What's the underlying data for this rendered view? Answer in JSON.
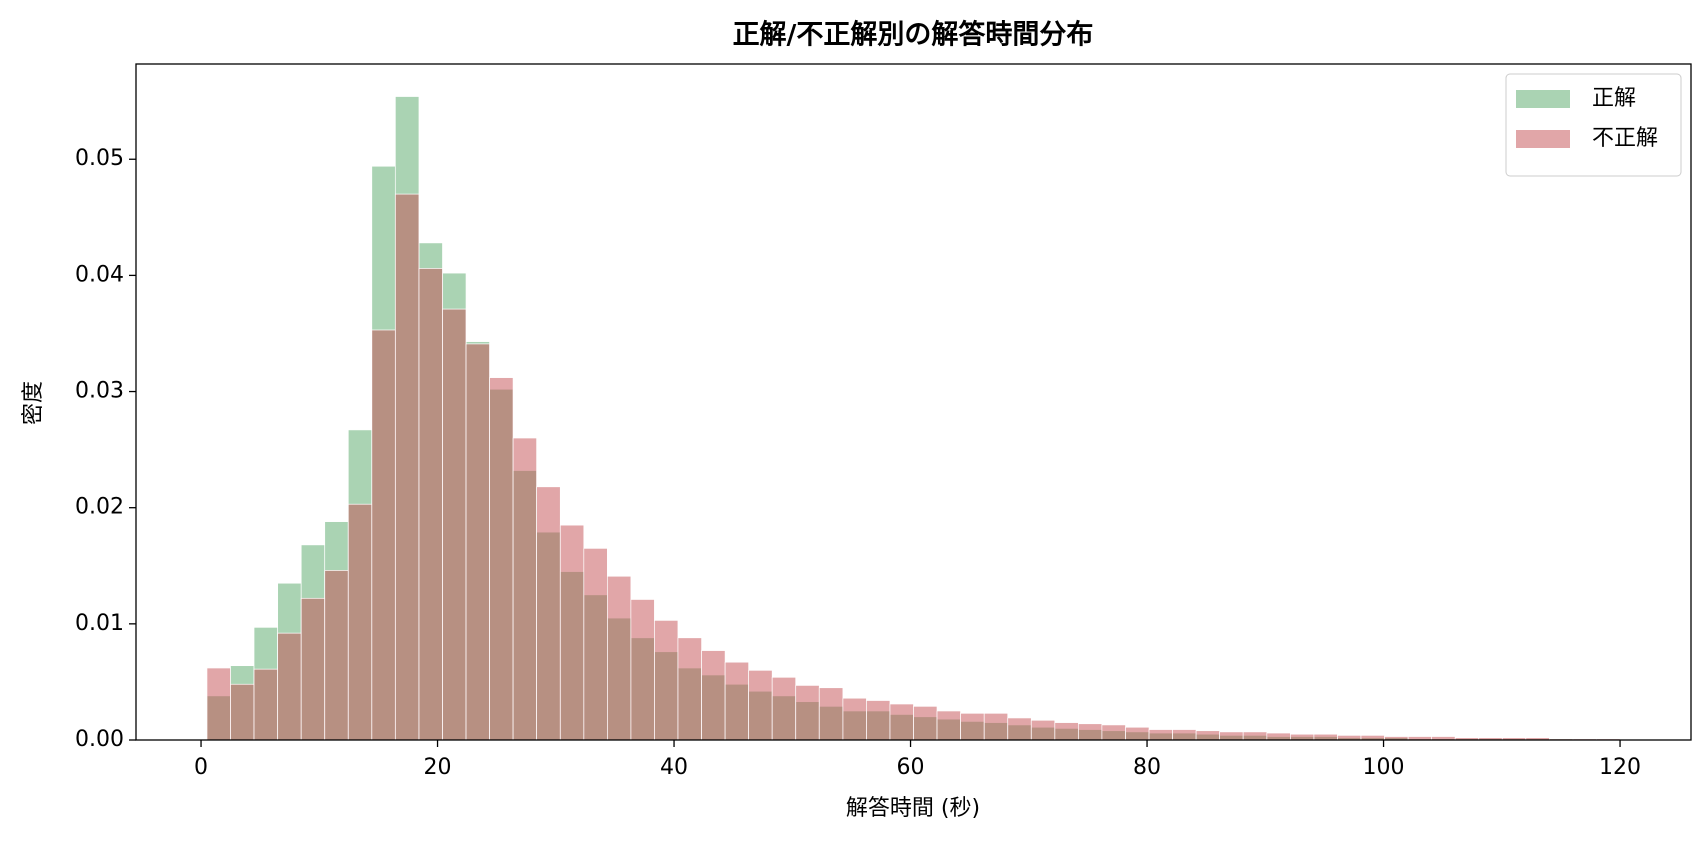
{
  "chart_data": {
    "type": "histogram",
    "title": "正解/不正解別の解答時間分布",
    "xlabel": "解答時間 (秒)",
    "ylabel": "密度",
    "bins": [
      0.5,
      2.49,
      4.48,
      6.48,
      8.47,
      10.46,
      12.45,
      14.44,
      16.43,
      18.43,
      20.42,
      22.41,
      24.4,
      26.39,
      28.38,
      30.38,
      32.37,
      34.36,
      36.35,
      38.34,
      40.33,
      42.33,
      44.32,
      46.31,
      48.3,
      50.29,
      52.28,
      54.28,
      56.27,
      58.26,
      60.25,
      62.24,
      64.23,
      66.23,
      68.22,
      70.21,
      72.2,
      74.19,
      76.18,
      78.18,
      80.17,
      82.16,
      84.15,
      86.14,
      88.13,
      90.13,
      92.12,
      94.11,
      96.1,
      98.09,
      100.08,
      102.08,
      104.07,
      106.06,
      108.05,
      110.04,
      112.03,
      114.03,
      116.02,
      118.01,
      120
    ],
    "series": [
      {
        "name": "正解",
        "color": "#55a868",
        "values": [
          0.0038,
          0.0064,
          0.0097,
          0.0135,
          0.0168,
          0.0188,
          0.0267,
          0.0494,
          0.0554,
          0.0428,
          0.0402,
          0.0343,
          0.0302,
          0.0232,
          0.0179,
          0.0145,
          0.0125,
          0.0105,
          0.0088,
          0.0076,
          0.0062,
          0.0056,
          0.0048,
          0.0042,
          0.0038,
          0.0033,
          0.0029,
          0.0025,
          0.0025,
          0.0022,
          0.002,
          0.0018,
          0.0016,
          0.0015,
          0.0013,
          0.0011,
          0.001,
          0.0009,
          0.0008,
          0.0007,
          0.0006,
          0.0006,
          0.0005,
          0.0004,
          0.0004,
          0.0003,
          0.0003,
          0.0003,
          0.0002,
          0.0002,
          0.0002,
          0.0001,
          0.0001,
          0.0001,
          0.0001,
          0.0001,
          0.0001,
          0.0001,
          0.0,
          0.0
        ]
      },
      {
        "name": "不正解",
        "color": "#c44e52",
        "values": [
          0.0062,
          0.0048,
          0.0061,
          0.0092,
          0.0122,
          0.0146,
          0.0203,
          0.0353,
          0.047,
          0.0406,
          0.0371,
          0.0341,
          0.0312,
          0.026,
          0.0218,
          0.0185,
          0.0165,
          0.0141,
          0.0121,
          0.0103,
          0.0088,
          0.0077,
          0.0067,
          0.006,
          0.0054,
          0.0047,
          0.0045,
          0.0036,
          0.0034,
          0.0031,
          0.0029,
          0.0025,
          0.0023,
          0.0023,
          0.0019,
          0.0017,
          0.0015,
          0.0014,
          0.0013,
          0.0011,
          0.0009,
          0.0009,
          0.0008,
          0.0007,
          0.0007,
          0.0006,
          0.0005,
          0.0005,
          0.0004,
          0.0004,
          0.0003,
          0.0003,
          0.0003,
          0.0002,
          0.0002,
          0.0002,
          0.0002,
          0.0001,
          0.0001,
          0.0001
        ]
      }
    ],
    "opacity": 0.5,
    "xlim": [
      -5.5,
      126
    ],
    "xticks": [
      0,
      20,
      40,
      60,
      80,
      100,
      120
    ],
    "ylim": [
      0,
      0.0582
    ],
    "yticks": [
      {
        "value": 0,
        "label": "0.00"
      },
      0.01,
      0.02,
      0.03,
      0.04,
      0.05
    ],
    "legend": "upper right"
  }
}
